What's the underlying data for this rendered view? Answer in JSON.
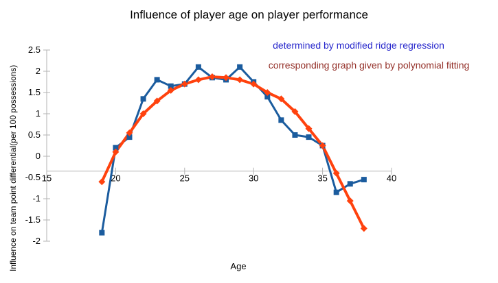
{
  "chart_data": {
    "type": "line",
    "title": "Influence of player age on player performance",
    "xlabel": "Age",
    "ylabel": "Influence on team point differential(per 100 possessions)",
    "x": [
      19,
      20,
      21,
      22,
      23,
      24,
      25,
      26,
      27,
      28,
      29,
      30,
      31,
      32,
      33,
      34,
      35,
      36,
      37,
      38
    ],
    "series": [
      {
        "name": "determined by modified ridge regression",
        "marker": "square",
        "color": "#1b5c9e",
        "values": [
          -1.8,
          0.2,
          0.45,
          1.35,
          1.8,
          1.65,
          1.7,
          2.1,
          1.85,
          1.8,
          2.1,
          1.75,
          1.4,
          0.85,
          0.5,
          0.45,
          0.25,
          -0.85,
          -0.65,
          -0.55
        ]
      },
      {
        "name": "corresponding graph given by polynomial fitting",
        "marker": "diamond",
        "color": "#ff420e",
        "values": [
          -0.6,
          0.1,
          0.55,
          1.0,
          1.3,
          1.55,
          1.7,
          1.8,
          1.87,
          1.85,
          1.8,
          1.7,
          1.5,
          1.35,
          1.05,
          0.65,
          0.25,
          -0.4,
          -1.05,
          -1.7
        ]
      }
    ],
    "xlim": [
      15,
      40
    ],
    "ylim": [
      -2,
      2.5
    ],
    "x_ticks": [
      "15",
      "20",
      "25",
      "30",
      "35",
      "40"
    ],
    "y_ticks": [
      "2.5",
      "2",
      "1.5",
      "1",
      "0.5",
      "0",
      "-0.5",
      "-1",
      "-1.5",
      "-2"
    ],
    "grid": false,
    "legend_position": "top-right",
    "legend_text_colors": [
      "#2727cc",
      "#943029"
    ],
    "axis_color": "#b3b3b3",
    "x_axis_cross": -0.35
  }
}
